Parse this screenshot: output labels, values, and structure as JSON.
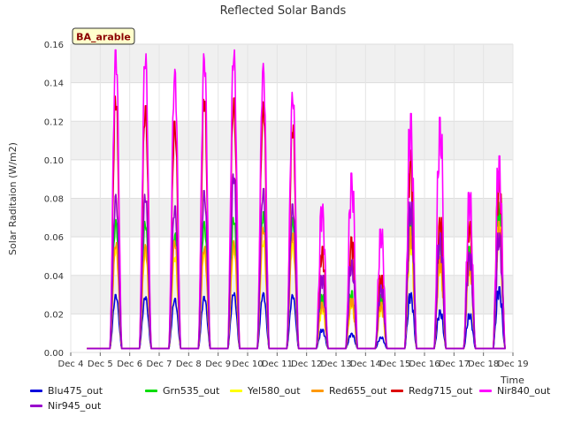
{
  "chart_data": {
    "type": "line",
    "title": "Reflected Solar Bands",
    "xlabel": "Time",
    "ylabel": "Solar Raditaion (W/m2)",
    "badge": "BA_arable",
    "ylim": [
      0,
      0.16
    ],
    "yticks": [
      "0.00",
      "0.02",
      "0.04",
      "0.06",
      "0.08",
      "0.10",
      "0.12",
      "0.14",
      "0.16"
    ],
    "xticks": [
      "Dec 4",
      "Dec 5",
      "Dec 6",
      "Dec 7",
      "Dec 8",
      "Dec 9",
      "Dec 10",
      "Dec 11",
      "Dec 12",
      "Dec 13",
      "Dec 14",
      "Dec 15",
      "Dec 16",
      "Dec 17",
      "Dec 18",
      "Dec 19"
    ],
    "grid": true,
    "legend_position": "bottom",
    "baseline": 0.002,
    "days": [
      "Dec 5",
      "Dec 6",
      "Dec 7",
      "Dec 8",
      "Dec 9",
      "Dec 10",
      "Dec 11",
      "Dec 12",
      "Dec 13",
      "Dec 14",
      "Dec 15",
      "Dec 16",
      "Dec 17",
      "Dec 18"
    ],
    "series": [
      {
        "name": "Blu475_out",
        "color": "#0000dd",
        "peaks": [
          0.03,
          0.029,
          0.028,
          0.029,
          0.031,
          0.031,
          0.03,
          0.012,
          0.01,
          0.008,
          0.031,
          0.022,
          0.02,
          0.034
        ]
      },
      {
        "name": "Grn535_out",
        "color": "#00dd00",
        "peaks": [
          0.069,
          0.068,
          0.062,
          0.068,
          0.07,
          0.073,
          0.07,
          0.03,
          0.032,
          0.03,
          0.07,
          0.06,
          0.055,
          0.078
        ]
      },
      {
        "name": "Yel580_out",
        "color": "#ffff00",
        "peaks": [
          0.055,
          0.053,
          0.05,
          0.053,
          0.055,
          0.058,
          0.057,
          0.024,
          0.026,
          0.024,
          0.06,
          0.048,
          0.046,
          0.065
        ]
      },
      {
        "name": "Red655_out",
        "color": "#ff9900",
        "peaks": [
          0.057,
          0.056,
          0.058,
          0.055,
          0.058,
          0.065,
          0.062,
          0.026,
          0.028,
          0.026,
          0.065,
          0.05,
          0.048,
          0.068
        ]
      },
      {
        "name": "Redg715_out",
        "color": "#dd0000",
        "peaks": [
          0.133,
          0.128,
          0.12,
          0.133,
          0.132,
          0.13,
          0.118,
          0.055,
          0.06,
          0.04,
          0.105,
          0.07,
          0.068,
          0.095
        ]
      },
      {
        "name": "Nir840_out",
        "color": "#ff00ff",
        "peaks": [
          0.157,
          0.155,
          0.147,
          0.155,
          0.157,
          0.15,
          0.135,
          0.077,
          0.093,
          0.064,
          0.124,
          0.122,
          0.083,
          0.102
        ]
      },
      {
        "name": "Nir945_out",
        "color": "#9900cc",
        "peaks": [
          0.082,
          0.082,
          0.076,
          0.084,
          0.093,
          0.085,
          0.077,
          0.04,
          0.048,
          0.035,
          0.078,
          0.062,
          0.052,
          0.062
        ]
      }
    ]
  }
}
